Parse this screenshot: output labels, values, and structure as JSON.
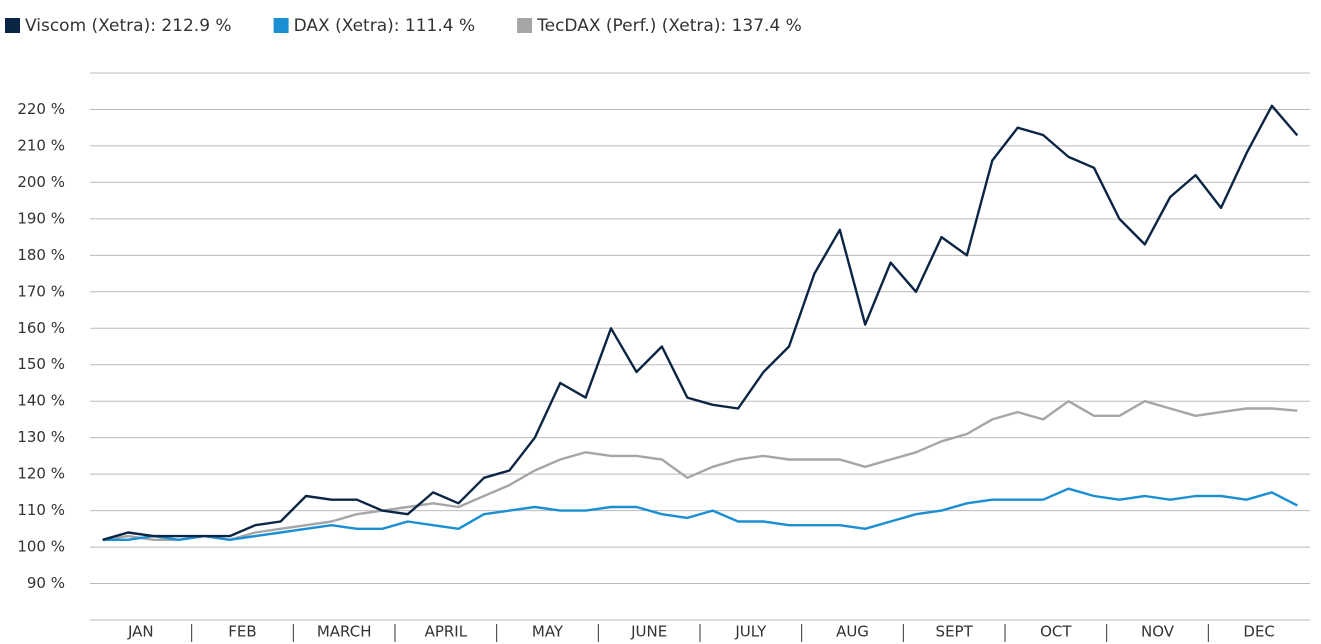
{
  "chart_data": {
    "type": "line",
    "categories": [
      null,
      "JAN",
      null,
      null,
      null,
      "FEB",
      null,
      null,
      null,
      "MARCH",
      null,
      null,
      null,
      "APRIL",
      null,
      null,
      null,
      "MAY",
      null,
      null,
      null,
      "JUNE",
      null,
      null,
      null,
      "JULY",
      null,
      null,
      null,
      "AUG",
      null,
      null,
      null,
      "SEPT",
      null,
      null,
      null,
      "OCT",
      null,
      null,
      null,
      "NOV",
      null,
      null,
      null,
      "DEC",
      null,
      null
    ],
    "series": [
      {
        "name": "Viscom (Xetra): 212.9 %",
        "color": "#0b2545",
        "values": [
          102,
          104,
          103,
          103,
          103,
          103,
          106,
          107,
          114,
          113,
          113,
          110,
          109,
          115,
          112,
          119,
          121,
          130,
          145,
          141,
          160,
          148,
          155,
          141,
          139,
          138,
          148,
          155,
          175,
          187,
          161,
          178,
          170,
          185,
          180,
          206,
          215,
          213,
          207,
          204,
          190,
          183,
          196,
          202,
          193,
          208,
          221,
          212.9
        ]
      },
      {
        "name": "DAX (Xetra): 111.4 %",
        "color": "#1a8fd1",
        "values": [
          102,
          102,
          103,
          102,
          103,
          102,
          103,
          104,
          105,
          106,
          105,
          105,
          107,
          106,
          105,
          109,
          110,
          111,
          110,
          110,
          111,
          111,
          109,
          108,
          110,
          107,
          107,
          106,
          106,
          106,
          105,
          107,
          109,
          110,
          112,
          113,
          113,
          113,
          116,
          114,
          113,
          114,
          113,
          114,
          114,
          113,
          115,
          111.4
        ]
      },
      {
        "name": "TecDAX (Perf.) (Xetra): 137.4 %",
        "color": "#a6a6a6",
        "values": [
          102,
          103,
          102,
          102,
          103,
          102,
          104,
          105,
          106,
          107,
          109,
          110,
          111,
          112,
          111,
          114,
          117,
          121,
          124,
          126,
          125,
          125,
          124,
          119,
          122,
          124,
          125,
          124,
          124,
          124,
          122,
          124,
          126,
          129,
          131,
          135,
          137,
          135,
          140,
          136,
          136,
          140,
          138,
          136,
          137,
          138,
          138,
          137.4
        ]
      }
    ],
    "ylim": [
      80,
      230
    ],
    "yticks": [
      {
        "value": 90,
        "label": "90 %"
      },
      {
        "value": 100,
        "label": "100 %"
      },
      {
        "value": 110,
        "label": "110 %"
      },
      {
        "value": 120,
        "label": "120 %"
      },
      {
        "value": 130,
        "label": "130 %"
      },
      {
        "value": 140,
        "label": "140 %"
      },
      {
        "value": 150,
        "label": "150 %"
      },
      {
        "value": 160,
        "label": "160 %"
      },
      {
        "value": 170,
        "label": "170 %"
      },
      {
        "value": 180,
        "label": "180 %"
      },
      {
        "value": 190,
        "label": "190 %"
      },
      {
        "value": 200,
        "label": "200 %"
      },
      {
        "value": 210,
        "label": "210 %"
      },
      {
        "value": 220,
        "label": "220 %"
      }
    ],
    "grid": true
  }
}
